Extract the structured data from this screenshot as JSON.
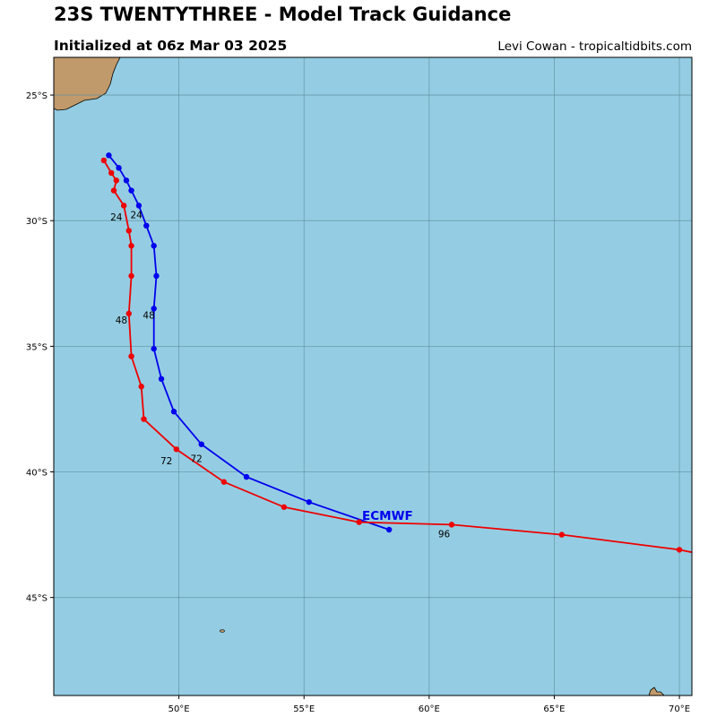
{
  "header": {
    "title": "23S TWENTYTHREE - Model Track Guidance",
    "subtitle": "Initialized at 06z Mar 03 2025",
    "credit": "Levi Cowan - tropicaltidbits.com"
  },
  "colors": {
    "ocean": "#94cde3",
    "land": "#c19a6b",
    "grid": "#5f8f9f",
    "track_blue": "#0000ee",
    "track_red": "#ee0000",
    "model_label": "#0000ee"
  },
  "axes": {
    "lon_ticks": [
      "50°E",
      "55°E",
      "60°E",
      "65°E",
      "70°E"
    ],
    "lat_ticks": [
      "25°S",
      "30°S",
      "35°S",
      "40°S",
      "45°S"
    ],
    "lon_values": [
      50,
      55,
      60,
      65,
      70
    ],
    "lat_values": [
      -25,
      -30,
      -35,
      -40,
      -45
    ],
    "lon_range": [
      45,
      70.5
    ],
    "lat_range": [
      -48.9,
      -23.5
    ]
  },
  "model_label": "ECMWF",
  "chart_data": {
    "type": "map",
    "series": [
      {
        "name": "ECMWF",
        "color": "blue",
        "points": [
          [
            47.2,
            -27.4
          ],
          [
            47.6,
            -27.9
          ],
          [
            47.9,
            -28.4
          ],
          [
            48.1,
            -28.8
          ],
          [
            48.4,
            -29.4
          ],
          [
            48.7,
            -30.2
          ],
          [
            49.0,
            -31.0
          ],
          [
            49.1,
            -32.2
          ],
          [
            49.0,
            -33.5
          ],
          [
            49.0,
            -35.1
          ],
          [
            49.3,
            -36.3
          ],
          [
            49.8,
            -37.6
          ],
          [
            50.9,
            -38.9
          ],
          [
            52.7,
            -40.2
          ],
          [
            55.2,
            -41.2
          ],
          [
            58.4,
            -42.3
          ]
        ],
        "hour_labels": [
          {
            "text": "24",
            "lon": 48.3,
            "lat": -29.9
          },
          {
            "text": "48",
            "lon": 48.8,
            "lat": -33.9
          },
          {
            "text": "72",
            "lon": 50.7,
            "lat": -39.6
          }
        ]
      },
      {
        "name": "",
        "color": "red",
        "points": [
          [
            47.0,
            -27.6
          ],
          [
            47.3,
            -28.1
          ],
          [
            47.5,
            -28.4
          ],
          [
            47.4,
            -28.8
          ],
          [
            47.8,
            -29.4
          ],
          [
            48.0,
            -30.4
          ],
          [
            48.1,
            -31.0
          ],
          [
            48.1,
            -32.2
          ],
          [
            48.0,
            -33.7
          ],
          [
            48.1,
            -35.4
          ],
          [
            48.5,
            -36.6
          ],
          [
            48.6,
            -37.9
          ],
          [
            49.9,
            -39.1
          ],
          [
            51.8,
            -40.4
          ],
          [
            54.2,
            -41.4
          ],
          [
            57.2,
            -42.0
          ],
          [
            60.9,
            -42.1
          ],
          [
            65.3,
            -42.5
          ],
          [
            70.0,
            -43.1
          ],
          [
            70.5,
            -43.2
          ]
        ],
        "hour_labels": [
          {
            "text": "24",
            "lon": 47.5,
            "lat": -30.0
          },
          {
            "text": "48",
            "lon": 47.7,
            "lat": -34.1
          },
          {
            "text": "72",
            "lon": 49.5,
            "lat": -39.7
          },
          {
            "text": "96",
            "lon": 60.6,
            "lat": -42.6
          }
        ]
      }
    ]
  }
}
